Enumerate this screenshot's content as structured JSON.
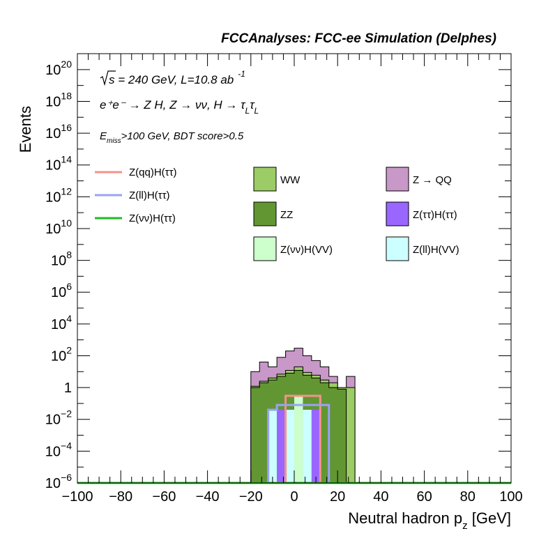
{
  "chart_data": {
    "type": "bar",
    "title": "FCCAnalyses: FCC-ee Simulation (Delphes)",
    "xlabel": "Neutral hadron p",
    "xlabel_sub": "z",
    "xlabel_unit": "[GeV]",
    "ylabel": "Events",
    "xlim": [
      -100,
      100
    ],
    "ylim": [
      1e-06,
      1e+21
    ],
    "y_scale": "log",
    "x_ticks": [
      -100,
      -80,
      -60,
      -40,
      -20,
      0,
      20,
      40,
      60,
      80,
      100
    ],
    "x_tick_labels": [
      "−100",
      "−80",
      "−60",
      "−40",
      "−20",
      "0",
      "20",
      "40",
      "60",
      "80",
      "100"
    ],
    "y_ticks": [
      {
        "value": 1e-06,
        "base": "10",
        "exp": "−6"
      },
      {
        "value": 0.0001,
        "base": "10",
        "exp": "−4"
      },
      {
        "value": 0.01,
        "base": "10",
        "exp": "−2"
      },
      {
        "value": 1,
        "base": "1",
        "exp": ""
      },
      {
        "value": 100.0,
        "base": "10",
        "exp": "2"
      },
      {
        "value": 10000.0,
        "base": "10",
        "exp": "4"
      },
      {
        "value": 1000000.0,
        "base": "10",
        "exp": "6"
      },
      {
        "value": 100000000.0,
        "base": "10",
        "exp": "8"
      },
      {
        "value": 10000000000.0,
        "base": "10",
        "exp": "10"
      },
      {
        "value": 1000000000000.0,
        "base": "10",
        "exp": "12"
      },
      {
        "value": 100000000000000.0,
        "base": "10",
        "exp": "14"
      },
      {
        "value": 1e+16,
        "base": "10",
        "exp": "16"
      },
      {
        "value": 1e+18,
        "base": "10",
        "exp": "18"
      },
      {
        "value": 1e+20,
        "base": "10",
        "exp": "20"
      }
    ],
    "annotations": {
      "energy_prefix": "s",
      "energy_text": " = 240 GeV, L=10.8 ab",
      "energy_exp": "-1",
      "process": "e⁺e⁻ → Z H, Z  → νν, H  → τ",
      "process_sub1": "L",
      "process_tau": "τ",
      "process_sub2": "L",
      "cut_prefix": "E",
      "cut_sub": "miss",
      "cut_text": ">100 GeV, BDT score>0.5"
    },
    "legend": {
      "placement": "top",
      "line_entries": [
        {
          "name": "Z(qq)H(ττ)",
          "color": "#f4928a"
        },
        {
          "name": "Z(ll)H(ττ)",
          "color": "#9aa2f4"
        },
        {
          "name": "Z(νν)H(ττ)",
          "color": "#22bb22"
        }
      ],
      "fill_entries": [
        {
          "name": "WW",
          "color": "#9ccc65"
        },
        {
          "name": "Z → QQ",
          "color": "#c898c8"
        },
        {
          "name": "ZZ",
          "color": "#629632"
        },
        {
          "name": "Z(ττ)H(ττ)",
          "color": "#9966ff"
        },
        {
          "name": "Z(νν)H(VV)",
          "color": "#ccffcc"
        },
        {
          "name": "Z(ll)H(VV)",
          "color": "#ccffff"
        }
      ]
    },
    "stack_bin_edges": [
      -20,
      -16,
      -12,
      -8,
      -4,
      0,
      4,
      8,
      12,
      16,
      20,
      24,
      28
    ],
    "stack_totals": [
      10,
      40,
      20,
      80,
      200,
      300,
      100,
      50,
      20,
      5,
      0.5,
      5
    ],
    "stack_inner": [
      {
        "name": "ZZ",
        "values": [
          1,
          2,
          3,
          5,
          8,
          12,
          6,
          4,
          2,
          1,
          0.8,
          1e-06
        ]
      },
      {
        "name": "WW",
        "values": [
          1.2,
          2.5,
          4,
          7,
          12,
          20,
          9,
          6,
          3,
          2,
          1,
          1
        ]
      }
    ],
    "signal_bars": [
      {
        "name": "Z(ll)H(VV)",
        "color": "#ccffff",
        "edges": [
          -12,
          -8
        ],
        "value": 0.04
      },
      {
        "name": "Z(ττ)H(ττ)",
        "color": "#9966ff",
        "edges": [
          -8,
          -4
        ],
        "value": 0.04
      },
      {
        "name": "Z(ll)H(VV)",
        "color": "#ccffff",
        "edges": [
          -4,
          0
        ],
        "value": 0.04
      },
      {
        "name": "Z(νν)H(VV)",
        "color": "#ccffcc",
        "edges": [
          0,
          4
        ],
        "value": 0.3
      },
      {
        "name": "Z(ll)H(VV)",
        "color": "#ccffff",
        "edges": [
          4,
          8
        ],
        "value": 0.04
      },
      {
        "name": "Z(ττ)H(ττ)",
        "color": "#9966ff",
        "edges": [
          8,
          12
        ],
        "value": 0.04
      }
    ],
    "line_series": [
      {
        "name": "Z(qq)H(ττ)",
        "color": "#f4928a",
        "edges": [
          -4,
          4,
          12
        ],
        "values": [
          0.3,
          0.3
        ]
      },
      {
        "name": "Z(ll)H(ττ)",
        "color": "#9aa2f4",
        "edges": [
          -12,
          -8,
          16
        ],
        "values": [
          0.04,
          0.08
        ]
      },
      {
        "name": "Z(νν)H(ττ)",
        "color": "#22bb22",
        "edges": [
          -100,
          100
        ],
        "values": [
          1e-06
        ]
      }
    ]
  }
}
